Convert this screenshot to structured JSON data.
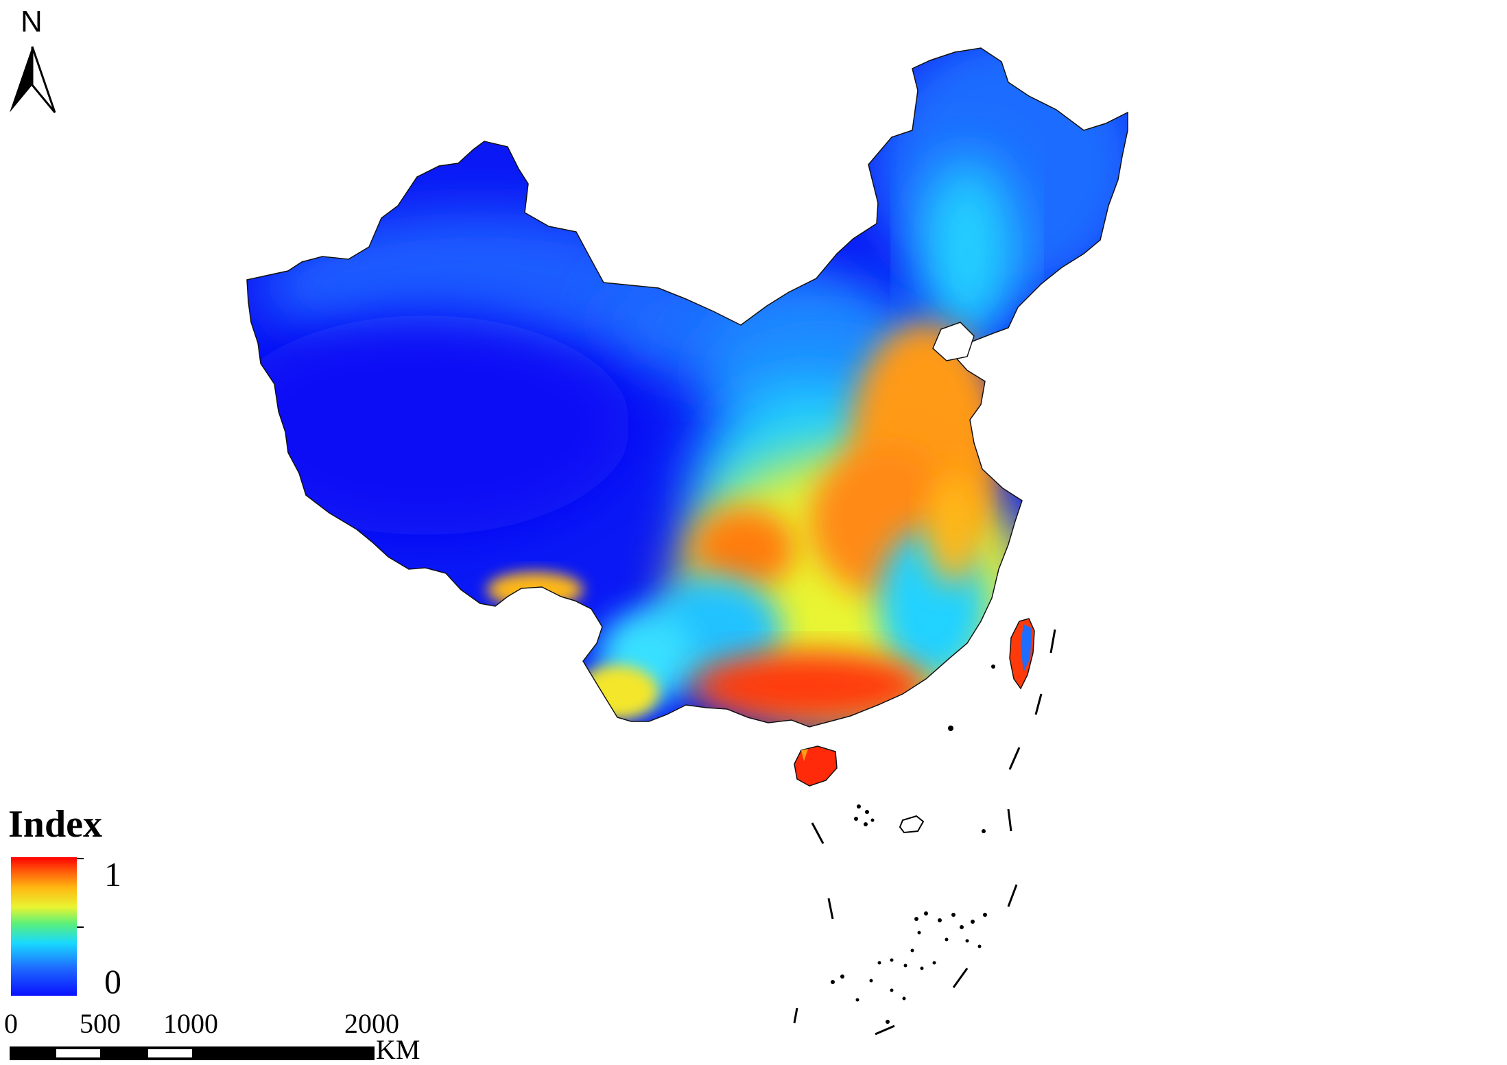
{
  "north_arrow": {
    "label": "N"
  },
  "legend": {
    "title": "Index",
    "max_label": "1",
    "min_label": "0",
    "colors": [
      "#0a10ff",
      "#1e6bff",
      "#19d9ff",
      "#59f07a",
      "#e9f532",
      "#ffb812",
      "#ff5a0a",
      "#ff0000"
    ]
  },
  "scale_bar": {
    "labels": [
      "0",
      "500",
      "1000",
      "2000"
    ],
    "unit": "KM",
    "values_km": [
      0,
      500,
      1000,
      2000
    ]
  },
  "map": {
    "colors": {
      "low": "#0a18f5",
      "low_mid": "#1f6dff",
      "mid": "#21d2ff",
      "mid_high": "#86f04a",
      "high_mid": "#f4e62c",
      "high": "#ff9a14",
      "very_high": "#ff3a0a",
      "max": "#ff1a00"
    }
  }
}
